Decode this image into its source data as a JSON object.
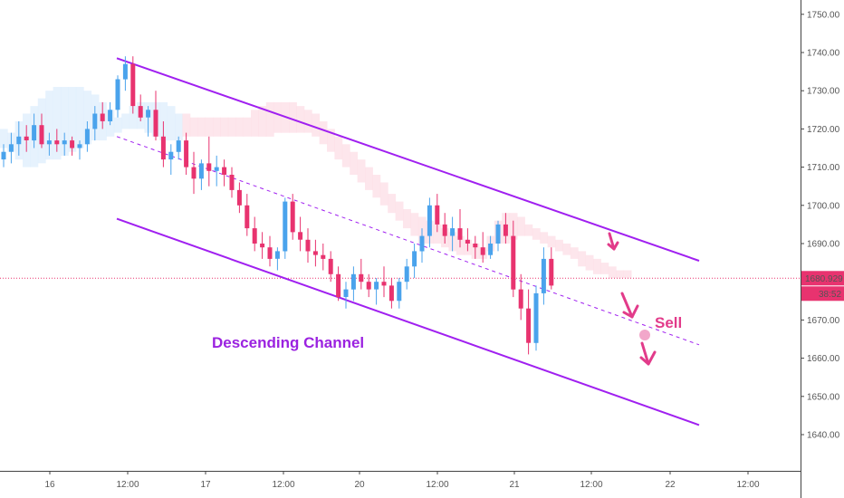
{
  "chart_data": {
    "type": "candlestick",
    "title": "",
    "xlabel": "",
    "ylabel": "",
    "ylim": [
      1632,
      1754
    ],
    "y_scale": "linear",
    "grid": false,
    "y_ticks": [
      1640,
      1650,
      1660,
      1670,
      1680,
      1690,
      1700,
      1710,
      1720,
      1730,
      1740,
      1750
    ],
    "x_ticks": [
      "16",
      "12:00",
      "17",
      "12:00",
      "20",
      "12:00",
      "21",
      "12:00",
      "22",
      "12:00"
    ],
    "current_price": "1680.929",
    "countdown": "38:52",
    "annotations": {
      "channel": "Descending Channel",
      "signal": "Sell"
    },
    "colors": {
      "up": "#4aa3ec",
      "down": "#e8336f",
      "channel": "#a020f0",
      "cloud": "#fcdde6",
      "cloud_alt": "#ddeefc",
      "price_line": "#e8336f",
      "annotation": "#9b22e0",
      "signal": "#e23b8a"
    },
    "candles": [
      [
        1712,
        1716,
        1710,
        1714
      ],
      [
        1714,
        1719,
        1711,
        1716
      ],
      [
        1716,
        1722,
        1713,
        1718
      ],
      [
        1718,
        1721,
        1714,
        1717
      ],
      [
        1717,
        1724,
        1715,
        1721
      ],
      [
        1721,
        1724,
        1715,
        1716
      ],
      [
        1716,
        1719,
        1713,
        1717
      ],
      [
        1717,
        1720,
        1714,
        1716
      ],
      [
        1716,
        1719,
        1713,
        1717
      ],
      [
        1717,
        1718,
        1713,
        1715
      ],
      [
        1715,
        1717,
        1712,
        1716
      ],
      [
        1716,
        1722,
        1714,
        1720
      ],
      [
        1720,
        1726,
        1717,
        1724
      ],
      [
        1724,
        1727,
        1720,
        1722
      ],
      [
        1722,
        1727,
        1721,
        1725
      ],
      [
        1725,
        1734,
        1723,
        1733
      ],
      [
        1733,
        1739,
        1730,
        1737
      ],
      [
        1737,
        1739,
        1724,
        1726
      ],
      [
        1726,
        1729,
        1722,
        1723
      ],
      [
        1723,
        1726,
        1718,
        1725
      ],
      [
        1725,
        1730,
        1717,
        1718
      ],
      [
        1718,
        1722,
        1710,
        1712
      ],
      [
        1712,
        1716,
        1708,
        1714
      ],
      [
        1714,
        1718,
        1712,
        1717
      ],
      [
        1717,
        1719,
        1708,
        1710
      ],
      [
        1710,
        1714,
        1703,
        1707
      ],
      [
        1707,
        1712,
        1704,
        1711
      ],
      [
        1711,
        1718,
        1705,
        1709
      ],
      [
        1709,
        1713,
        1705,
        1710
      ],
      [
        1710,
        1712,
        1705,
        1708
      ],
      [
        1708,
        1710,
        1702,
        1704
      ],
      [
        1704,
        1706,
        1698,
        1700
      ],
      [
        1700,
        1703,
        1692,
        1694
      ],
      [
        1694,
        1697,
        1688,
        1690
      ],
      [
        1690,
        1693,
        1686,
        1689
      ],
      [
        1689,
        1692,
        1684,
        1686
      ],
      [
        1686,
        1689,
        1683,
        1688
      ],
      [
        1688,
        1702,
        1686,
        1701
      ],
      [
        1701,
        1703,
        1691,
        1693
      ],
      [
        1693,
        1697,
        1688,
        1691
      ],
      [
        1691,
        1694,
        1685,
        1688
      ],
      [
        1688,
        1691,
        1684,
        1687
      ],
      [
        1687,
        1690,
        1683,
        1686
      ],
      [
        1686,
        1688,
        1680,
        1682
      ],
      [
        1682,
        1684,
        1675,
        1676
      ],
      [
        1676,
        1680,
        1673,
        1678
      ],
      [
        1678,
        1684,
        1675,
        1682
      ],
      [
        1682,
        1686,
        1678,
        1680
      ],
      [
        1680,
        1682,
        1676,
        1678
      ],
      [
        1678,
        1681,
        1674,
        1680
      ],
      [
        1680,
        1684,
        1676,
        1679
      ],
      [
        1679,
        1681,
        1673,
        1675
      ],
      [
        1675,
        1681,
        1673,
        1680
      ],
      [
        1680,
        1686,
        1678,
        1684
      ],
      [
        1684,
        1690,
        1681,
        1688
      ],
      [
        1688,
        1694,
        1685,
        1692
      ],
      [
        1692,
        1702,
        1689,
        1700
      ],
      [
        1700,
        1703,
        1693,
        1695
      ],
      [
        1695,
        1698,
        1690,
        1692
      ],
      [
        1692,
        1697,
        1688,
        1694
      ],
      [
        1694,
        1699,
        1689,
        1691
      ],
      [
        1691,
        1694,
        1688,
        1690
      ],
      [
        1690,
        1692,
        1686,
        1689
      ],
      [
        1689,
        1693,
        1685,
        1687
      ],
      [
        1687,
        1692,
        1686,
        1690
      ],
      [
        1690,
        1696,
        1688,
        1695
      ],
      [
        1695,
        1698,
        1690,
        1692
      ],
      [
        1692,
        1696,
        1676,
        1678
      ],
      [
        1678,
        1682,
        1670,
        1673
      ],
      [
        1673,
        1678,
        1661,
        1664
      ],
      [
        1664,
        1679,
        1662,
        1677
      ],
      [
        1677,
        1689,
        1674,
        1686
      ],
      [
        1686,
        1689,
        1678,
        1679
      ]
    ],
    "channel": {
      "upper": [
        [
          0.0,
          1738.5
        ],
        [
          77.0,
          1685.5
        ]
      ],
      "lower": [
        [
          0.0,
          1696.5
        ],
        [
          77.0,
          1642.5
        ]
      ],
      "mid": [
        [
          0.0,
          1718.0
        ],
        [
          77.0,
          1663.5
        ]
      ]
    },
    "cloud": [
      [
        1715,
        1720
      ],
      [
        1714,
        1719
      ],
      [
        1712,
        1722
      ],
      [
        1710,
        1724
      ],
      [
        1710,
        1726
      ],
      [
        1711,
        1728
      ],
      [
        1712,
        1730
      ],
      [
        1712,
        1731
      ],
      [
        1713,
        1731
      ],
      [
        1714,
        1731
      ],
      [
        1715,
        1731
      ],
      [
        1716,
        1730
      ],
      [
        1717,
        1729
      ],
      [
        1717,
        1727
      ],
      [
        1718,
        1725
      ],
      [
        1719,
        1723
      ],
      [
        1720,
        1724
      ],
      [
        1720,
        1726
      ],
      [
        1720,
        1727
      ],
      [
        1719,
        1727
      ],
      [
        1718,
        1727
      ],
      [
        1717,
        1727
      ],
      [
        1717,
        1726
      ],
      [
        1717,
        1724
      ],
      [
        1718,
        1724
      ],
      [
        1718,
        1723
      ],
      [
        1718,
        1723
      ],
      [
        1718,
        1723
      ],
      [
        1718,
        1723
      ],
      [
        1718,
        1723
      ],
      [
        1718,
        1723
      ],
      [
        1718,
        1723
      ],
      [
        1718,
        1723
      ],
      [
        1718,
        1725
      ],
      [
        1718,
        1726
      ],
      [
        1718,
        1727
      ],
      [
        1719,
        1727
      ],
      [
        1719,
        1727
      ],
      [
        1719,
        1727
      ],
      [
        1719,
        1726
      ],
      [
        1719,
        1725
      ],
      [
        1718,
        1724
      ],
      [
        1716,
        1722
      ],
      [
        1714,
        1720
      ],
      [
        1712,
        1718
      ],
      [
        1710,
        1716
      ],
      [
        1708,
        1714
      ],
      [
        1706,
        1712
      ],
      [
        1704,
        1710
      ],
      [
        1702,
        1708
      ],
      [
        1700,
        1706
      ],
      [
        1698,
        1703
      ],
      [
        1696,
        1701
      ],
      [
        1694,
        1699
      ],
      [
        1692,
        1698
      ],
      [
        1690,
        1697
      ],
      [
        1690,
        1696
      ],
      [
        1690,
        1695
      ],
      [
        1689,
        1694
      ],
      [
        1688,
        1693
      ],
      [
        1687,
        1692
      ],
      [
        1687,
        1691
      ],
      [
        1686,
        1690
      ],
      [
        1686,
        1689
      ],
      [
        1688,
        1692
      ],
      [
        1690,
        1696
      ],
      [
        1690,
        1698
      ],
      [
        1691,
        1698
      ],
      [
        1692,
        1697
      ],
      [
        1692,
        1695
      ],
      [
        1691,
        1694
      ],
      [
        1690,
        1693
      ],
      [
        1689,
        1692
      ],
      [
        1688,
        1691
      ],
      [
        1687,
        1690
      ],
      [
        1686,
        1689
      ],
      [
        1684,
        1688
      ],
      [
        1683,
        1687
      ],
      [
        1682,
        1686
      ],
      [
        1682,
        1685
      ],
      [
        1681,
        1684
      ],
      [
        1681,
        1683
      ],
      [
        1681,
        1683
      ]
    ]
  }
}
